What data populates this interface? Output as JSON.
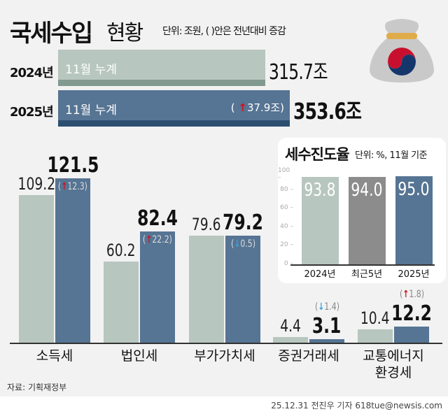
{
  "header": {
    "title": "국세수입",
    "title2": "현황",
    "unit": "단위: 조원, ( )안은 전년대비 증감"
  },
  "totals": [
    {
      "year": "2024년",
      "label": "11월 누계",
      "value": 315.7,
      "value_text": "315.7조",
      "color": "#b7c6bf",
      "foot": "#829a90"
    },
    {
      "year": "2025년",
      "label": "11월 누계",
      "value": 353.6,
      "value_text": "353.6조",
      "change_dir": "up",
      "change_text": "37.9조",
      "color": "#567493",
      "foot": "#2c4f70"
    }
  ],
  "chart_data": [
    {
      "type": "bar",
      "categories": [
        "소득세",
        "법인세",
        "부가가치세",
        "증권거래세",
        "교통에너지 환경세"
      ],
      "series": [
        {
          "name": "2024년",
          "color": "#b7c6bf",
          "values": [
            109.2,
            60.2,
            79.6,
            4.4,
            10.4
          ]
        },
        {
          "name": "2025년",
          "color": "#567493",
          "values": [
            121.5,
            82.4,
            79.2,
            3.1,
            12.2
          ]
        }
      ],
      "changes": [
        {
          "dir": "up",
          "text": "12.3"
        },
        {
          "dir": "up",
          "text": "22.2"
        },
        {
          "dir": "down",
          "text": "0.5"
        },
        {
          "dir": "down",
          "text": "1.4"
        },
        {
          "dir": "up",
          "text": "1.8"
        }
      ],
      "value_texts": [
        [
          "109.2",
          "121.5"
        ],
        [
          "60.2",
          "82.4"
        ],
        [
          "79.6",
          "79.2"
        ],
        [
          "4.4",
          "3.1"
        ],
        [
          "10.4",
          "12.2"
        ]
      ]
    },
    {
      "type": "bar",
      "title": "세수진도율",
      "unit": "단위: %, 11월 기준",
      "categories": [
        "2024년",
        "최근5년",
        "2025년"
      ],
      "values": [
        93.8,
        94.0,
        95.0
      ],
      "value_texts": [
        "93.8",
        "94.0",
        "95.0"
      ],
      "colors": [
        "#b7c6bf",
        "#8c8c8c",
        "#567493"
      ],
      "ylim": [
        0,
        100
      ],
      "yticks": [
        "0",
        "20",
        "40",
        "60",
        "80",
        "100"
      ]
    }
  ],
  "source": "자료: 기획재정부",
  "credit": "25.12.31 전진우 기자 618tue@newsis.com",
  "icons": {
    "money-bag": "money-bag-icon",
    "up": "↑",
    "down": "↓"
  }
}
